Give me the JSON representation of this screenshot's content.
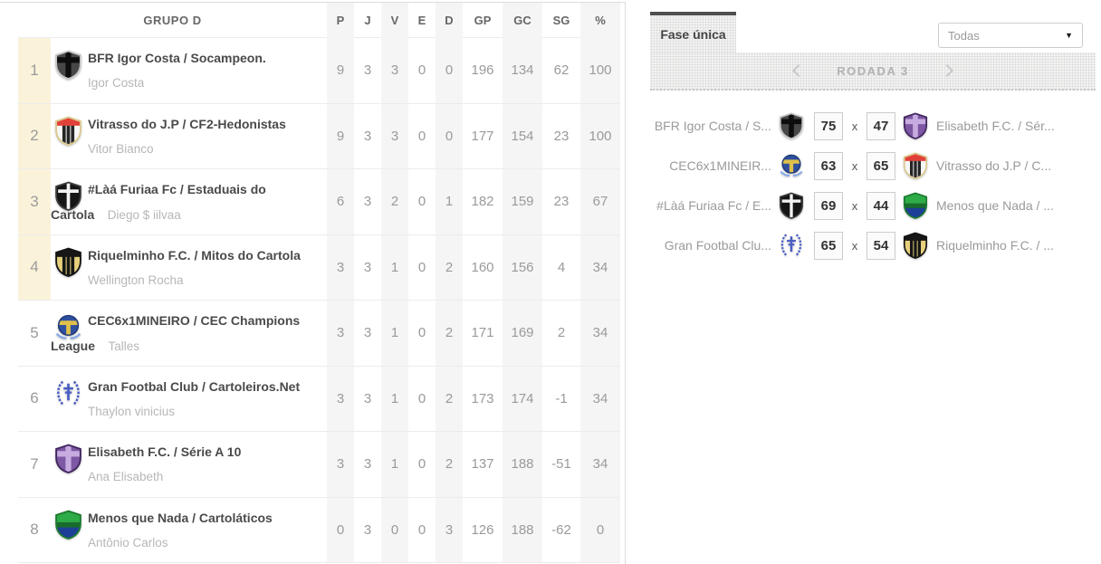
{
  "colors": {
    "row_highlight": "#faf3da",
    "tab_accent": "#4f4f4f"
  },
  "table": {
    "group": "GRUPO D",
    "cols": [
      "P",
      "J",
      "V",
      "E",
      "D",
      "GP",
      "GC",
      "SG",
      "%"
    ],
    "rows": [
      {
        "pos": "1",
        "line1": "BFR Igor Costa / Socampeon.",
        "line2": "",
        "manager": "Igor Costa",
        "stats": [
          "9",
          "3",
          "3",
          "0",
          "0",
          "196",
          "134",
          "62",
          "100"
        ],
        "highlight": true,
        "icon": {
          "shape": "shield",
          "base": "#474747",
          "border": "#c6c6c6",
          "layers": [
            {
              "type": "cross",
              "color": "#0d0d0d"
            }
          ]
        }
      },
      {
        "pos": "2",
        "line1": "Vitrasso do J.P / CF2-Hedonistas",
        "line2": "",
        "manager": "Vitor Bianco",
        "stats": [
          "9",
          "3",
          "3",
          "0",
          "0",
          "177",
          "154",
          "23",
          "100"
        ],
        "highlight": true,
        "icon": {
          "shape": "shield",
          "base": "#f7f7f7",
          "border": "#dcc98e",
          "layers": [
            {
              "type": "stripes",
              "color": "#262626"
            },
            {
              "type": "chief",
              "color": "#e2413a"
            }
          ]
        }
      },
      {
        "pos": "3",
        "line1": "#Làá Furiaa Fc / Estaduais do",
        "line2": "Cartola",
        "manager": "Diego $ iilvaa",
        "stats": [
          "6",
          "3",
          "2",
          "0",
          "1",
          "182",
          "159",
          "23",
          "67"
        ],
        "highlight": true,
        "icon": {
          "shape": "shield",
          "base": "#151515",
          "border": "#3d3d3d",
          "layers": [
            {
              "type": "cross-thin",
              "color": "#f2f2f2"
            }
          ]
        }
      },
      {
        "pos": "4",
        "line1": "Riquelminho F.C. / Mitos do Cartola",
        "line2": "",
        "manager": "Wellington Rocha",
        "stats": [
          "3",
          "3",
          "1",
          "0",
          "2",
          "160",
          "156",
          "4",
          "34"
        ],
        "highlight": true,
        "icon": {
          "shape": "shield",
          "base": "#e6d07c",
          "border": "#141414",
          "layers": [
            {
              "type": "stripes",
              "color": "#161616"
            },
            {
              "type": "chief",
              "color": "#161616"
            }
          ]
        }
      },
      {
        "pos": "5",
        "line1": "CEC6x1MINEIRO / CEC Champions",
        "line2": "League",
        "manager": "Talles",
        "stats": [
          "3",
          "3",
          "1",
          "0",
          "2",
          "171",
          "169",
          "2",
          "34"
        ],
        "highlight": false,
        "icon": {
          "shape": "circle",
          "base": "#2f4f9f",
          "border": "#203a77",
          "layers": [
            {
              "type": "tee",
              "color": "#dfc04a"
            },
            {
              "type": "wings",
              "color": "#86a9e8"
            }
          ]
        }
      },
      {
        "pos": "6",
        "line1": "Gran Footbal Club / Cartoleiros.Net",
        "line2": "",
        "manager": "Thaylon vinicius",
        "stats": [
          "3",
          "3",
          "1",
          "0",
          "2",
          "173",
          "174",
          "-1",
          "34"
        ],
        "highlight": false,
        "icon": {
          "shape": "wreath",
          "base": "#4a5ec4"
        }
      },
      {
        "pos": "7",
        "line1": "Elisabeth F.C. / Série A 10",
        "line2": "",
        "manager": "Ana Elisabeth",
        "stats": [
          "3",
          "3",
          "1",
          "0",
          "2",
          "137",
          "188",
          "-51",
          "34"
        ],
        "highlight": false,
        "icon": {
          "shape": "shield",
          "base": "#7e58a4",
          "border": "#40265e",
          "layers": [
            {
              "type": "cross",
              "color": "#c7abe0"
            }
          ]
        }
      },
      {
        "pos": "8",
        "line1": "Menos que Nada / Cartoláticos",
        "line2": "",
        "manager": "Antônio Carlos",
        "stats": [
          "0",
          "3",
          "0",
          "0",
          "3",
          "126",
          "188",
          "-62",
          "0"
        ],
        "highlight": false,
        "icon": {
          "shape": "shield",
          "base": "#2dab47",
          "border": "#1c7a30",
          "layers": [
            {
              "type": "bottom",
              "color": "#1d3f96"
            },
            {
              "type": "band",
              "color": "#186b2c"
            }
          ]
        }
      }
    ]
  },
  "panel": {
    "tab": "Fase única",
    "filter_selected": "Todas",
    "caret": "▼",
    "round": "RODADA 3",
    "score_separator": "x",
    "matches": [
      {
        "home": "BFR Igor Costa / S...",
        "home_score": "75",
        "away_score": "47",
        "away": "Elisabeth F.C. / Sér...",
        "home_badge": 0,
        "away_badge": 6
      },
      {
        "home": "CEC6x1MINEIR...",
        "home_score": "63",
        "away_score": "65",
        "away": "Vitrasso do J.P / C...",
        "home_badge": 4,
        "away_badge": 1
      },
      {
        "home": "#Làá Furiaa Fc / E...",
        "home_score": "69",
        "away_score": "44",
        "away": "Menos que Nada / ...",
        "home_badge": 2,
        "away_badge": 7
      },
      {
        "home": "Gran Footbal Clu...",
        "home_score": "65",
        "away_score": "54",
        "away": "Riquelminho F.C. / ...",
        "home_badge": 5,
        "away_badge": 3
      }
    ]
  }
}
